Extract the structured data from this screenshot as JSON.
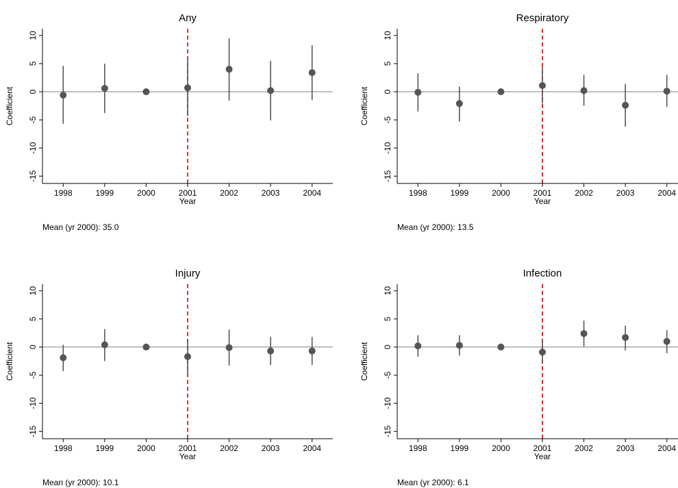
{
  "chart_data": [
    {
      "type": "errorbar",
      "title": "Any",
      "xlabel": "Year",
      "ylabel": "Coefficient",
      "note": "Mean (yr 2000): 35.0",
      "x": [
        1998,
        1999,
        2000,
        2001,
        2002,
        2003,
        2004
      ],
      "values": [
        -0.6,
        0.6,
        0,
        0.7,
        4.0,
        0.2,
        3.4
      ],
      "ci_low": [
        -5.7,
        -3.8,
        null,
        -4.3,
        -1.6,
        -5.1,
        -1.5
      ],
      "ci_high": [
        4.6,
        5.0,
        null,
        5.7,
        9.5,
        5.5,
        8.3
      ],
      "xlim": [
        1997.5,
        2004.5
      ],
      "ylim": [
        -16.3,
        11.2
      ],
      "xticks": [
        1998,
        1999,
        2000,
        2001,
        2002,
        2003,
        2004
      ],
      "yticks": [
        -15,
        -10,
        -5,
        0,
        5,
        10
      ],
      "hline": 0,
      "vline": 2001,
      "color": "#555555"
    },
    {
      "type": "errorbar",
      "title": "Respiratory",
      "xlabel": "Year",
      "ylabel": "Coefficient",
      "note": "Mean (yr 2000): 13.5",
      "x": [
        1998,
        1999,
        2000,
        2001,
        2002,
        2003,
        2004
      ],
      "values": [
        -0.1,
        -2.1,
        0,
        1.1,
        0.2,
        -2.4,
        0.1
      ],
      "ci_low": [
        -3.5,
        -5.3,
        null,
        -2.1,
        -2.5,
        -6.2,
        -2.7
      ],
      "ci_high": [
        3.3,
        0.9,
        null,
        4.4,
        3.0,
        1.4,
        3.0
      ],
      "xlim": [
        1997.5,
        2004.5
      ],
      "ylim": [
        -16.3,
        11.2
      ],
      "xticks": [
        1998,
        1999,
        2000,
        2001,
        2002,
        2003,
        2004
      ],
      "yticks": [
        -15,
        -10,
        -5,
        0,
        5,
        10
      ],
      "hline": 0,
      "vline": 2001,
      "color": "#555555"
    },
    {
      "type": "errorbar",
      "title": "Injury",
      "xlabel": "Year",
      "ylabel": "Coefficient",
      "note": "Mean (yr 2000): 10.1",
      "x": [
        1998,
        1999,
        2000,
        2001,
        2002,
        2003,
        2004
      ],
      "values": [
        -1.9,
        0.4,
        0,
        -1.7,
        -0.1,
        -0.7,
        -0.7
      ],
      "ci_low": [
        -4.3,
        -2.5,
        null,
        -4.7,
        -3.3,
        -3.2,
        -3.2
      ],
      "ci_high": [
        0.4,
        3.2,
        null,
        1.3,
        3.1,
        1.8,
        1.8
      ],
      "xlim": [
        1997.5,
        2004.5
      ],
      "ylim": [
        -16.3,
        11.2
      ],
      "xticks": [
        1998,
        1999,
        2000,
        2001,
        2002,
        2003,
        2004
      ],
      "yticks": [
        -15,
        -10,
        -5,
        0,
        5,
        10
      ],
      "hline": 0,
      "vline": 2001,
      "color": "#555555"
    },
    {
      "type": "errorbar",
      "title": "Infection",
      "xlabel": "Year",
      "ylabel": "Coefficient",
      "note": "Mean (yr 2000): 6.1",
      "x": [
        1998,
        1999,
        2000,
        2001,
        2002,
        2003,
        2004
      ],
      "values": [
        0.2,
        0.3,
        0,
        -0.9,
        2.4,
        1.7,
        1.0
      ],
      "ci_low": [
        -1.7,
        -1.5,
        null,
        -3.0,
        0.1,
        -0.6,
        -1.1
      ],
      "ci_high": [
        2.1,
        2.1,
        null,
        1.2,
        4.7,
        3.8,
        3.0
      ],
      "xlim": [
        1997.5,
        2004.5
      ],
      "ylim": [
        -16.3,
        11.2
      ],
      "xticks": [
        1998,
        1999,
        2000,
        2001,
        2002,
        2003,
        2004
      ],
      "yticks": [
        -15,
        -10,
        -5,
        0,
        5,
        10
      ],
      "hline": 0,
      "vline": 2001,
      "color": "#555555"
    }
  ]
}
